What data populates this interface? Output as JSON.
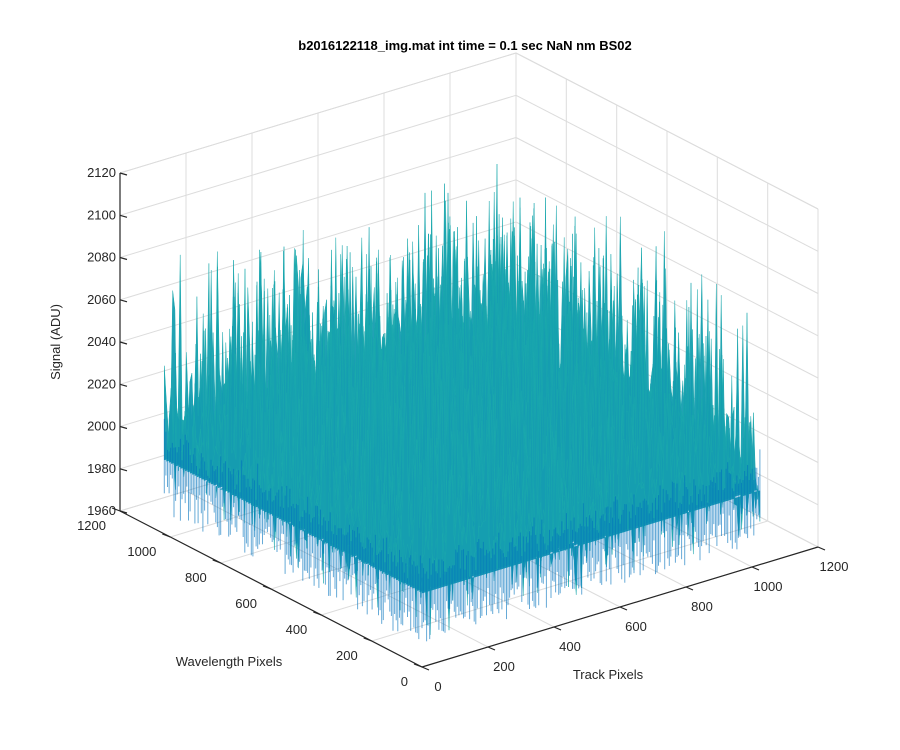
{
  "chart_data": {
    "type": "surface",
    "title": "b2016122118_img.mat int time = 0.1 sec  NaN nm BS02",
    "xlabel": "Track Pixels",
    "ylabel": "Wavelength Pixels",
    "zlabel": "Signal (ADU)",
    "xlim": [
      0,
      1200
    ],
    "ylim": [
      0,
      1200
    ],
    "zlim": [
      1960,
      2120
    ],
    "x_ticks": [
      0,
      200,
      400,
      600,
      800,
      1000,
      1200
    ],
    "y_ticks": [
      0,
      200,
      400,
      600,
      800,
      1000,
      1200
    ],
    "z_ticks": [
      1960,
      1980,
      2000,
      2020,
      2040,
      2060,
      2080,
      2100,
      2120
    ],
    "x_tick_labels": [
      "0",
      "200",
      "400",
      "600",
      "800",
      "1000",
      "1200"
    ],
    "y_tick_labels": [
      "0",
      "200",
      "400",
      "600",
      "800",
      "1000",
      "1200"
    ],
    "z_tick_labels": [
      "1960",
      "1980",
      "2000",
      "2020",
      "2040",
      "2060",
      "2080",
      "2100",
      "2120"
    ],
    "surface_x_range": [
      0,
      1024
    ],
    "surface_y_range": [
      0,
      1024
    ],
    "surface_z_baseline": 2005,
    "surface_z_noise_range": [
      1970,
      2115
    ],
    "grid": true,
    "colormap": "parula",
    "colors": {
      "low": "#0072bd",
      "mid": "#1fb2aa",
      "high": "#d5d33c"
    }
  }
}
